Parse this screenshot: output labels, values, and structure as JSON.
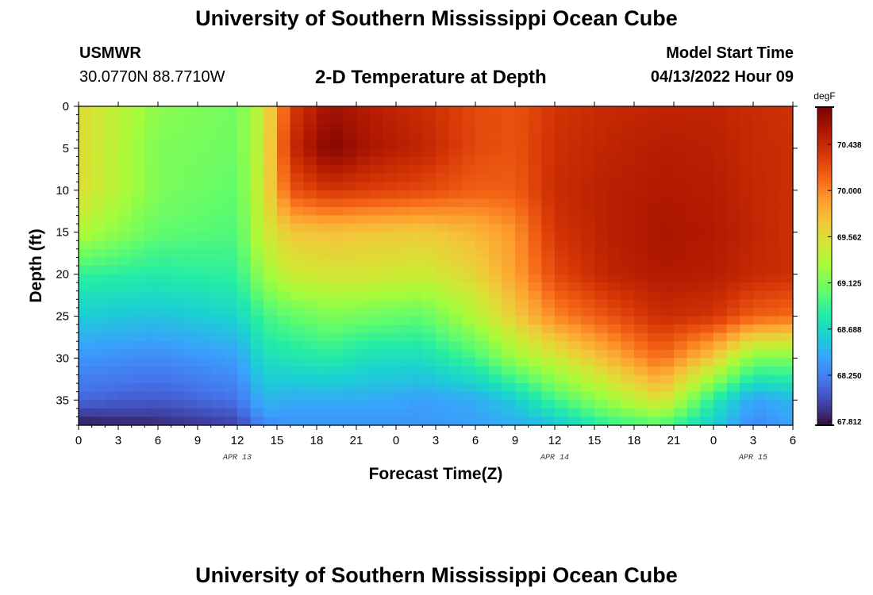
{
  "header": {
    "title": "University of Southern Mississippi Ocean Cube",
    "station": "USMWR",
    "coordinates": "30.0770N  88.7710W",
    "subtitle": "2-D Temperature at Depth",
    "model_start_label": "Model Start Time",
    "model_start_value": "04/13/2022 Hour 09"
  },
  "footer": {
    "title": "University of Southern Mississippi Ocean Cube"
  },
  "chart_data": {
    "type": "heatmap",
    "xlabel": "Forecast Time(Z)",
    "ylabel": "Depth (ft)",
    "x_tick_labels": [
      "0",
      "3",
      "6",
      "9",
      "12",
      "15",
      "18",
      "21",
      "0",
      "3",
      "6",
      "9",
      "12",
      "15",
      "18",
      "21",
      "0",
      "3",
      "6"
    ],
    "x_range_hours": [
      0,
      54
    ],
    "date_labels": [
      {
        "label": "APR 13",
        "hour": 12
      },
      {
        "label": "APR 14",
        "hour": 36
      },
      {
        "label": "APR 15",
        "hour": 51
      }
    ],
    "y_ticks": [
      0,
      5,
      10,
      15,
      20,
      25,
      30,
      35
    ],
    "y_range": [
      0,
      38
    ],
    "y_inverted": true,
    "colorbar": {
      "unit": "degF",
      "ticks": [
        "70.438",
        "70.000",
        "69.562",
        "69.125",
        "68.688",
        "68.250",
        "67.812"
      ],
      "vmin": 67.812,
      "vmax": 70.65
    },
    "depth_grid_ft": [
      0,
      5,
      10,
      15,
      20,
      25,
      30,
      35,
      38
    ],
    "time_grid_hours": [
      0,
      6,
      12,
      14,
      16,
      19,
      22,
      26,
      30,
      33,
      36,
      40,
      44,
      48,
      51,
      54
    ],
    "temperature_degF": [
      [
        69.52,
        69.15,
        69.05,
        69.4,
        70.2,
        70.5,
        70.4,
        70.3,
        70.15,
        70.1,
        70.25,
        70.32,
        70.35,
        70.35,
        70.3,
        70.28
      ],
      [
        69.52,
        69.1,
        69.05,
        69.4,
        70.3,
        70.62,
        70.45,
        70.35,
        70.15,
        70.1,
        70.28,
        70.35,
        70.4,
        70.38,
        70.32,
        70.28
      ],
      [
        69.5,
        69.1,
        69.0,
        69.45,
        70.1,
        70.25,
        70.2,
        70.15,
        70.05,
        70.05,
        70.3,
        70.38,
        70.42,
        70.4,
        70.33,
        70.28
      ],
      [
        69.3,
        69.0,
        68.95,
        69.4,
        69.62,
        69.65,
        69.62,
        69.6,
        69.7,
        69.85,
        70.25,
        70.38,
        70.45,
        70.42,
        70.35,
        70.28
      ],
      [
        68.85,
        68.8,
        68.85,
        69.2,
        69.4,
        69.45,
        69.45,
        69.4,
        69.55,
        69.8,
        70.15,
        70.35,
        70.42,
        70.4,
        70.32,
        70.28
      ],
      [
        68.6,
        68.55,
        68.65,
        68.9,
        69.0,
        69.1,
        69.05,
        69.0,
        69.3,
        69.6,
        69.9,
        70.1,
        70.3,
        70.25,
        70.05,
        70.0
      ],
      [
        68.35,
        68.3,
        68.4,
        68.7,
        68.75,
        68.8,
        68.7,
        68.7,
        68.9,
        69.2,
        69.4,
        69.7,
        70.0,
        69.6,
        69.1,
        69.1
      ],
      [
        68.15,
        68.1,
        68.2,
        68.5,
        68.45,
        68.45,
        68.45,
        68.4,
        68.45,
        68.6,
        68.9,
        69.2,
        69.5,
        68.8,
        68.4,
        68.5
      ],
      [
        67.85,
        67.9,
        68.0,
        68.3,
        68.35,
        68.35,
        68.35,
        68.35,
        68.4,
        68.45,
        68.55,
        68.85,
        68.95,
        68.6,
        68.3,
        68.4
      ]
    ]
  }
}
